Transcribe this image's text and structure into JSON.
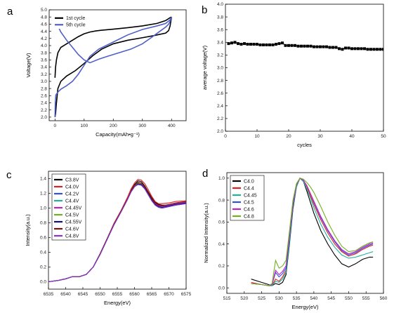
{
  "chart_data": [
    {
      "panel": "a",
      "type": "line",
      "title": "",
      "xlabel": "Capacity(mAh•g⁻¹)",
      "ylabel": "Voltage(V)",
      "xlim": [
        -20,
        450
      ],
      "ylim": [
        1.9,
        5.0
      ],
      "xticks": [
        0,
        100,
        200,
        300,
        400
      ],
      "yticks": [
        2.0,
        2.2,
        2.4,
        2.6,
        2.8,
        3.0,
        3.2,
        3.4,
        3.6,
        3.8,
        4.0,
        4.2,
        4.4,
        4.6,
        4.8,
        5.0
      ],
      "legend_position": "top-left",
      "series": [
        {
          "name": "1st cycle",
          "color": "#000000",
          "segments": [
            {
              "x": [
                0,
                2,
                5,
                10,
                20,
                40,
                60,
                80,
                100,
                120,
                140,
                160,
                200,
                250,
                300,
                350,
                380,
                395,
                400
              ],
              "y": [
                3.1,
                3.4,
                3.6,
                3.8,
                3.95,
                4.05,
                4.15,
                4.25,
                4.33,
                4.38,
                4.41,
                4.43,
                4.46,
                4.5,
                4.55,
                4.62,
                4.7,
                4.78,
                4.8
              ]
            },
            {
              "x": [
                400,
                398,
                395,
                390,
                380,
                340,
                300,
                250,
                200,
                160,
                130,
                100,
                70,
                40,
                20,
                10,
                5,
                2,
                0
              ],
              "y": [
                4.8,
                4.7,
                4.55,
                4.42,
                4.35,
                4.28,
                4.22,
                4.15,
                4.05,
                3.9,
                3.72,
                3.5,
                3.3,
                3.15,
                3.0,
                2.8,
                2.4,
                2.1,
                2.0
              ]
            }
          ]
        },
        {
          "name": "5th cycle",
          "color": "#4f5fc8",
          "segments": [
            {
              "x": [
                0,
                1,
                3,
                10,
                20,
                40,
                60,
                80,
                100,
                120,
                150,
                200,
                250,
                300,
                350,
                380,
                395,
                400
              ],
              "y": [
                2.0,
                2.4,
                2.62,
                2.7,
                2.78,
                2.88,
                3.0,
                3.2,
                3.45,
                3.7,
                3.9,
                4.1,
                4.3,
                4.45,
                4.55,
                4.62,
                4.72,
                4.8
              ]
            },
            {
              "x": [
                400,
                398,
                395,
                390,
                380,
                360,
                330,
                300,
                260,
                220,
                180,
                150,
                120,
                100,
                80,
                60,
                40,
                20,
                10,
                5,
                2,
                0
              ],
              "y": [
                4.8,
                4.75,
                4.68,
                4.6,
                4.52,
                4.4,
                4.22,
                4.05,
                3.9,
                3.8,
                3.7,
                3.62,
                3.52,
                3.6,
                3.75,
                3.95,
                4.15,
                4.38,
                4.55,
                4.65,
                4.7,
                4.72
              ]
            }
          ]
        }
      ]
    },
    {
      "panel": "b",
      "type": "line",
      "title": "",
      "xlabel": "cycles",
      "ylabel": "average voltage(V)",
      "xlim": [
        0,
        50
      ],
      "ylim": [
        2.0,
        4.0
      ],
      "xticks": [
        0,
        10,
        20,
        30,
        40,
        50
      ],
      "yticks": [
        2.0,
        2.2,
        2.4,
        2.6,
        2.8,
        3.0,
        3.2,
        3.4,
        3.6,
        3.8,
        4.0
      ],
      "series": [
        {
          "name": "",
          "color": "#000000",
          "marker": "square",
          "x": [
            1,
            2,
            3,
            4,
            5,
            6,
            7,
            8,
            9,
            10,
            11,
            12,
            13,
            14,
            15,
            16,
            17,
            18,
            19,
            20,
            21,
            22,
            23,
            24,
            25,
            26,
            27,
            28,
            29,
            30,
            31,
            32,
            33,
            34,
            35,
            36,
            37,
            38,
            39,
            40,
            41,
            42,
            43,
            44,
            45,
            46,
            47,
            48,
            49,
            50
          ],
          "y": [
            3.38,
            3.39,
            3.4,
            3.38,
            3.37,
            3.38,
            3.37,
            3.37,
            3.37,
            3.37,
            3.36,
            3.36,
            3.36,
            3.36,
            3.36,
            3.37,
            3.38,
            3.39,
            3.35,
            3.35,
            3.35,
            3.35,
            3.34,
            3.34,
            3.34,
            3.34,
            3.34,
            3.33,
            3.33,
            3.33,
            3.33,
            3.33,
            3.32,
            3.32,
            3.32,
            3.3,
            3.29,
            3.31,
            3.31,
            3.3,
            3.3,
            3.3,
            3.3,
            3.3,
            3.29,
            3.29,
            3.29,
            3.29,
            3.29,
            3.29
          ]
        }
      ]
    },
    {
      "panel": "c",
      "type": "line",
      "title": "",
      "xlabel": "Energy(eV)",
      "ylabel": "Intensity(a.u.)",
      "xlim": [
        6535,
        6575
      ],
      "ylim": [
        -0.1,
        1.5
      ],
      "xticks": [
        6535,
        6540,
        6545,
        6550,
        6555,
        6560,
        6565,
        6570,
        6575
      ],
      "yticks": [
        0.0,
        0.2,
        0.4,
        0.6,
        0.8,
        1.0,
        1.2,
        1.4
      ],
      "legend_position": "top-left",
      "x": [
        6535,
        6538,
        6540,
        6542,
        6544,
        6546,
        6548,
        6550,
        6552,
        6554,
        6556,
        6558,
        6559,
        6560,
        6561,
        6562,
        6563,
        6564,
        6565,
        6566,
        6567,
        6568,
        6570,
        6572,
        6575
      ],
      "series": [
        {
          "name": "C3.8V",
          "color": "#000000",
          "y": [
            0.0,
            0.02,
            0.04,
            0.07,
            0.07,
            0.1,
            0.2,
            0.38,
            0.58,
            0.78,
            0.95,
            1.14,
            1.24,
            1.32,
            1.37,
            1.36,
            1.3,
            1.22,
            1.14,
            1.08,
            1.05,
            1.04,
            1.04,
            1.06,
            1.08
          ]
        },
        {
          "name": "C4.0V",
          "color": "#e02020",
          "y": [
            0.0,
            0.02,
            0.04,
            0.07,
            0.07,
            0.1,
            0.2,
            0.38,
            0.58,
            0.79,
            0.96,
            1.15,
            1.26,
            1.34,
            1.39,
            1.38,
            1.33,
            1.25,
            1.16,
            1.09,
            1.06,
            1.06,
            1.07,
            1.09,
            1.1
          ]
        },
        {
          "name": "C4.2V",
          "color": "#3050e0",
          "y": [
            0.0,
            0.02,
            0.04,
            0.07,
            0.07,
            0.1,
            0.2,
            0.37,
            0.57,
            0.77,
            0.94,
            1.12,
            1.22,
            1.29,
            1.32,
            1.31,
            1.26,
            1.18,
            1.1,
            1.04,
            1.01,
            1.0,
            1.02,
            1.04,
            1.06
          ]
        },
        {
          "name": "C4.4V",
          "color": "#20b0a0",
          "y": [
            0.0,
            0.02,
            0.04,
            0.07,
            0.07,
            0.1,
            0.2,
            0.37,
            0.57,
            0.77,
            0.94,
            1.12,
            1.22,
            1.29,
            1.32,
            1.31,
            1.26,
            1.18,
            1.1,
            1.04,
            1.01,
            1.0,
            1.02,
            1.04,
            1.06
          ]
        },
        {
          "name": "C4.45V",
          "color": "#c020c0",
          "y": [
            0.0,
            0.02,
            0.04,
            0.07,
            0.07,
            0.1,
            0.2,
            0.38,
            0.58,
            0.78,
            0.95,
            1.13,
            1.23,
            1.31,
            1.35,
            1.34,
            1.28,
            1.2,
            1.12,
            1.06,
            1.03,
            1.02,
            1.04,
            1.06,
            1.08
          ]
        },
        {
          "name": "C4.5V",
          "color": "#70b020",
          "y": [
            0.0,
            0.02,
            0.04,
            0.07,
            0.07,
            0.1,
            0.2,
            0.38,
            0.58,
            0.78,
            0.95,
            1.13,
            1.23,
            1.3,
            1.34,
            1.33,
            1.27,
            1.19,
            1.11,
            1.05,
            1.02,
            1.01,
            1.03,
            1.05,
            1.07
          ]
        },
        {
          "name": "C4.55V",
          "color": "#10107a",
          "y": [
            0.0,
            0.02,
            0.04,
            0.07,
            0.07,
            0.1,
            0.2,
            0.37,
            0.57,
            0.77,
            0.94,
            1.12,
            1.22,
            1.29,
            1.33,
            1.32,
            1.27,
            1.19,
            1.11,
            1.05,
            1.02,
            1.01,
            1.03,
            1.05,
            1.07
          ]
        },
        {
          "name": "C4.6V",
          "color": "#7a1010",
          "y": [
            0.0,
            0.02,
            0.04,
            0.07,
            0.07,
            0.1,
            0.2,
            0.38,
            0.58,
            0.78,
            0.95,
            1.13,
            1.23,
            1.31,
            1.35,
            1.34,
            1.29,
            1.21,
            1.13,
            1.07,
            1.04,
            1.03,
            1.05,
            1.07,
            1.09
          ]
        },
        {
          "name": "C4.8V",
          "color": "#8a30d0",
          "y": [
            0.0,
            0.02,
            0.04,
            0.07,
            0.07,
            0.1,
            0.2,
            0.37,
            0.57,
            0.77,
            0.94,
            1.12,
            1.22,
            1.29,
            1.32,
            1.31,
            1.26,
            1.18,
            1.1,
            1.04,
            1.01,
            1.0,
            1.02,
            1.04,
            1.06
          ]
        }
      ]
    },
    {
      "panel": "d",
      "type": "line",
      "title": "",
      "xlabel": "Energy(eV)",
      "ylabel": "Normalized Intensity(a.u.)",
      "xlim": [
        515,
        560
      ],
      "ylim": [
        -0.05,
        1.05
      ],
      "xticks": [
        515,
        520,
        525,
        530,
        535,
        540,
        545,
        550,
        555,
        560
      ],
      "yticks": [
        0.0,
        0.2,
        0.4,
        0.6,
        0.8,
        1.0
      ],
      "legend_position": "top-left",
      "x": [
        522,
        525,
        527,
        528,
        529,
        530,
        531,
        532,
        533,
        534,
        535,
        536,
        537,
        538,
        539,
        540,
        542,
        544,
        546,
        548,
        550,
        552,
        554,
        556,
        557
      ],
      "series": [
        {
          "name": "C4.0",
          "color": "#000000",
          "y": [
            0.08,
            0.05,
            0.03,
            0.02,
            0.04,
            0.03,
            0.05,
            0.12,
            0.4,
            0.72,
            0.92,
            1.0,
            0.97,
            0.88,
            0.78,
            0.68,
            0.52,
            0.4,
            0.3,
            0.22,
            0.19,
            0.22,
            0.26,
            0.28,
            0.28
          ]
        },
        {
          "name": "C4.4",
          "color": "#e02020",
          "y": [
            0.05,
            0.03,
            0.02,
            0.02,
            0.08,
            0.06,
            0.1,
            0.16,
            0.45,
            0.75,
            0.93,
            1.0,
            0.98,
            0.92,
            0.84,
            0.76,
            0.62,
            0.5,
            0.4,
            0.33,
            0.29,
            0.31,
            0.35,
            0.38,
            0.39
          ]
        },
        {
          "name": "C4.45",
          "color": "#20b0a0",
          "y": [
            0.04,
            0.03,
            0.02,
            0.02,
            0.06,
            0.05,
            0.08,
            0.14,
            0.42,
            0.74,
            0.92,
            1.0,
            0.97,
            0.9,
            0.82,
            0.73,
            0.58,
            0.46,
            0.37,
            0.3,
            0.27,
            0.28,
            0.3,
            0.32,
            0.33
          ]
        },
        {
          "name": "C4.5",
          "color": "#3050e0",
          "y": [
            0.04,
            0.03,
            0.02,
            0.03,
            0.14,
            0.1,
            0.13,
            0.18,
            0.47,
            0.76,
            0.94,
            1.0,
            0.98,
            0.93,
            0.86,
            0.78,
            0.64,
            0.52,
            0.42,
            0.34,
            0.3,
            0.32,
            0.36,
            0.39,
            0.4
          ]
        },
        {
          "name": "C4.6",
          "color": "#c020c0",
          "y": [
            0.04,
            0.03,
            0.02,
            0.03,
            0.16,
            0.12,
            0.15,
            0.2,
            0.48,
            0.77,
            0.94,
            1.0,
            0.98,
            0.93,
            0.86,
            0.79,
            0.65,
            0.53,
            0.43,
            0.35,
            0.31,
            0.33,
            0.37,
            0.4,
            0.41
          ]
        },
        {
          "name": "C4.8",
          "color": "#70b020",
          "y": [
            0.04,
            0.03,
            0.02,
            0.04,
            0.25,
            0.18,
            0.2,
            0.25,
            0.52,
            0.8,
            0.95,
            1.0,
            0.99,
            0.96,
            0.92,
            0.87,
            0.74,
            0.6,
            0.48,
            0.38,
            0.33,
            0.34,
            0.38,
            0.41,
            0.42
          ]
        }
      ]
    }
  ],
  "panel_labels": [
    "a",
    "b",
    "c",
    "d"
  ]
}
